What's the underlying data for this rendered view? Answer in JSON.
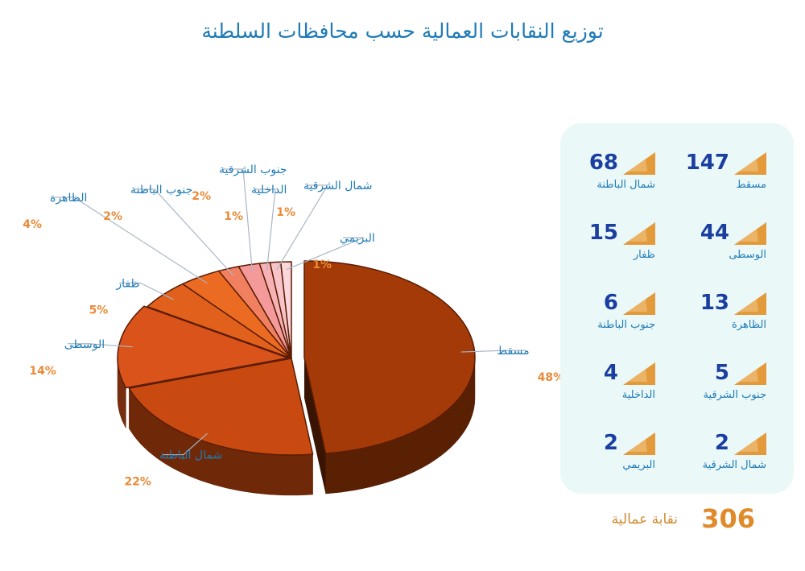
{
  "chart_data": {
    "type": "pie",
    "title": "توزيع النقابات العمالية حسب محافظات السلطنة",
    "slices": [
      {
        "name": "مسقط",
        "pct": 48,
        "pct_label": "48%",
        "count": 147,
        "color": "#a33a08"
      },
      {
        "name": "شمال الباطنة",
        "pct": 22,
        "pct_label": "22%",
        "count": 68,
        "color": "#c94a10"
      },
      {
        "name": "الوسطى",
        "pct": 14,
        "pct_label": "14%",
        "count": 44,
        "color": "#d9531a"
      },
      {
        "name": "ظفار",
        "pct": 5,
        "pct_label": "5%",
        "count": 15,
        "color": "#e0601c"
      },
      {
        "name": "الظاهرة",
        "pct": 4,
        "pct_label": "4%",
        "count": 13,
        "color": "#ec6b22"
      },
      {
        "name": "جنوب الباطنة",
        "pct": 2,
        "pct_label": "2%",
        "count": 6,
        "color": "#f08060"
      },
      {
        "name": "جنوب الشرقية",
        "pct": 2,
        "pct_label": "2%",
        "count": 5,
        "color": "#f49a9a"
      },
      {
        "name": "الداخلية",
        "pct": 1,
        "pct_label": "1%",
        "count": 4,
        "color": "#f6b2b4"
      },
      {
        "name": "شمال الشرقية",
        "pct": 1,
        "pct_label": "1%",
        "count": 2,
        "color": "#f8c4c8"
      },
      {
        "name": "البريمي",
        "pct": 1,
        "pct_label": "1%",
        "count": 2,
        "color": "#fbd6da"
      }
    ],
    "legend_placement": "right",
    "total": {
      "value": "306",
      "unit": "نقابة عمالية"
    }
  }
}
